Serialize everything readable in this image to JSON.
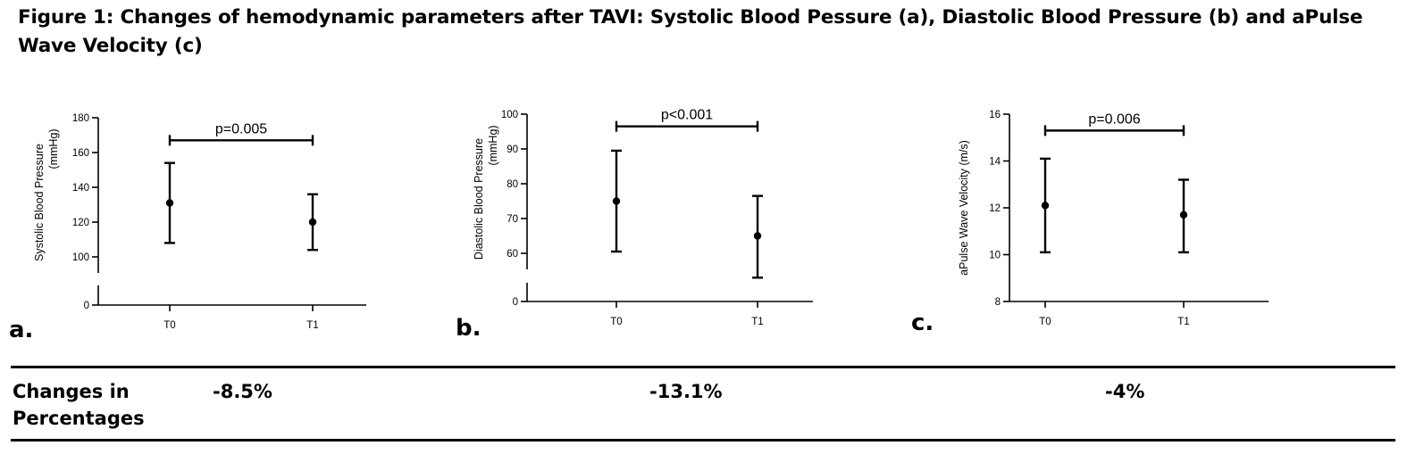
{
  "title": "Figure 1:  Changes of hemodynamic parameters after  TAVI: Systolic  Blood Pessure  (a), Diastolic  Blood Pressure  (b) and aPulse Wave  Velocity (c)",
  "colors": {
    "ink": "#000000",
    "background": "#ffffff"
  },
  "chart_data": [
    {
      "type": "scatter",
      "panel_label": "a.",
      "ylabel_line1": "Systolic Blood Pressure",
      "ylabel_line2": "(mmHg)",
      "categories": [
        "T0",
        "T1"
      ],
      "means": [
        131,
        120
      ],
      "upper": [
        154,
        136
      ],
      "lower": [
        108,
        104
      ],
      "ylim": [
        0,
        180
      ],
      "axis_break": true,
      "yticks": [
        0,
        100,
        120,
        140,
        160,
        180
      ],
      "significance": {
        "from": "T0",
        "to": "T1",
        "y": 167,
        "label": "p=0.005"
      }
    },
    {
      "type": "scatter",
      "panel_label": "b.",
      "ylabel_line1": "Diastolic Blood  Pressure",
      "ylabel_line2": "(mmHg)",
      "categories": [
        "T0",
        "T1"
      ],
      "means": [
        75,
        65
      ],
      "upper": [
        89.5,
        76.5
      ],
      "lower": [
        60.5,
        53
      ],
      "ylim": [
        0,
        100
      ],
      "axis_break": true,
      "yticks": [
        0,
        60,
        70,
        80,
        90,
        100
      ],
      "significance": {
        "from": "T0",
        "to": "T1",
        "y": 96.5,
        "label": "p<0.001"
      }
    },
    {
      "type": "scatter",
      "panel_label": "c.",
      "ylabel_line1": "aPulse Wave  Velocity (m/s)",
      "ylabel_line2": "",
      "categories": [
        "T0",
        "T1"
      ],
      "means": [
        12.1,
        11.7
      ],
      "upper": [
        14.1,
        13.2
      ],
      "lower": [
        10.1,
        10.1
      ],
      "ylim": [
        8,
        16
      ],
      "axis_break": false,
      "yticks": [
        8,
        10,
        12,
        14,
        16
      ],
      "significance": {
        "from": "T0",
        "to": "T1",
        "y": 15.3,
        "label": "p=0.006"
      }
    }
  ],
  "table": {
    "row_label": "Changes in Percentages",
    "values": [
      "-8.5%",
      "-13.1%",
      "-4%"
    ]
  }
}
